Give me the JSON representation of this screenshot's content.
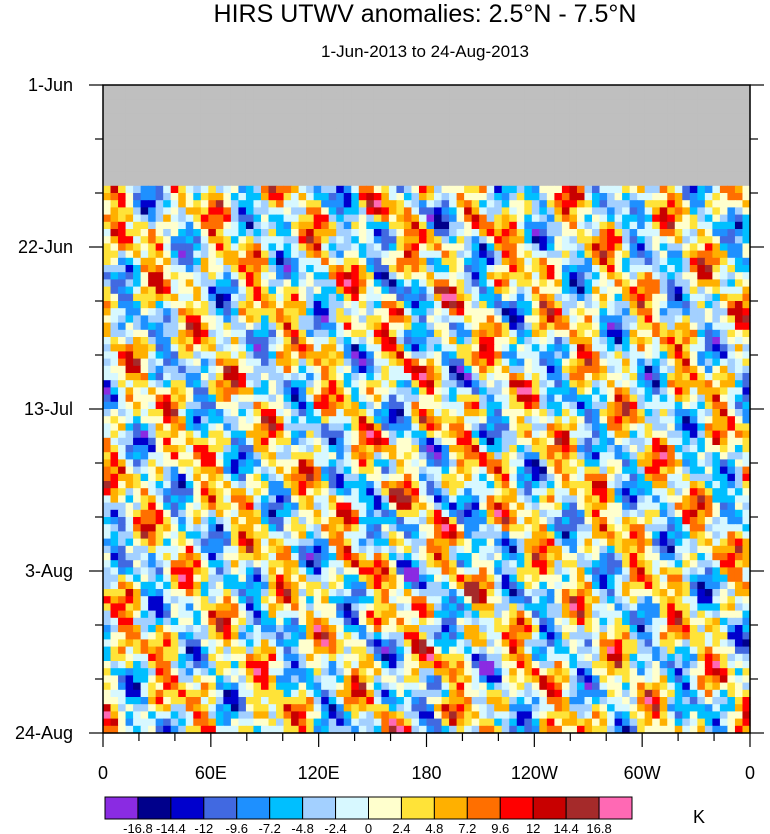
{
  "chart_data": {
    "type": "heatmap",
    "title": "HIRS UTWV anomalies: 2.5°N - 7.5°N",
    "subtitle": "1-Jun-2013 to 24-Aug-2013",
    "x_ticks": [
      "0",
      "60E",
      "120E",
      "180",
      "120W",
      "60W",
      "0"
    ],
    "y_ticks": [
      "1-Jun",
      "22-Jun",
      "13-Jul",
      "3-Aug",
      "24-Aug"
    ],
    "x_range": [
      0,
      360
    ],
    "y_range": [
      "1-Jun-2013",
      "24-Aug-2013"
    ],
    "missing_until": "14-Jun-2013",
    "colorbar": {
      "unit": "K",
      "levels": [
        "-16.8",
        "-14.4",
        "-12",
        "-9.6",
        "-7.2",
        "-4.8",
        "-2.4",
        "0",
        "2.4",
        "4.8",
        "7.2",
        "9.6",
        "12",
        "14.4",
        "16.8"
      ],
      "colors": [
        "#8a2be2",
        "#00008b",
        "#0000cd",
        "#4169e1",
        "#1e90ff",
        "#00bfff",
        "#a3d0ff",
        "#d7f8ff",
        "#ffffcd",
        "#ffe338",
        "#ffb000",
        "#ff6f00",
        "#ff0000",
        "#c80000",
        "#a52a2a",
        "#ff69b4"
      ]
    }
  }
}
